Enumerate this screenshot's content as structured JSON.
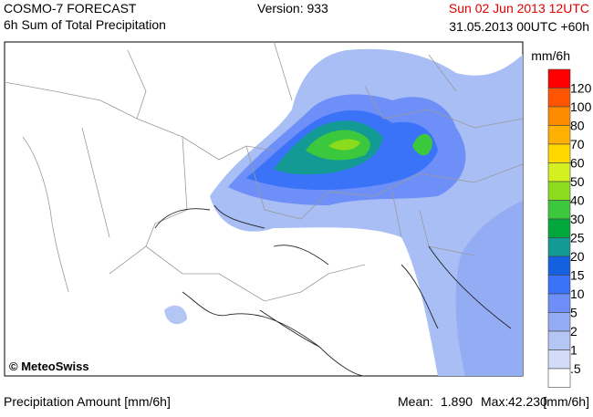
{
  "header": {
    "title": "COSMO-7 FORECAST",
    "subtitle": "6h Sum of Total Precipitation",
    "version": "Version: 933",
    "valid_time": "Sun 02 Jun 2013 12UTC",
    "run_time": "31.05.2013 00UTC +60h"
  },
  "map": {
    "copyright": "© MeteoSwiss"
  },
  "legend": {
    "unit": "mm/6h",
    "colors": [
      "#ff0000",
      "#ff5500",
      "#ff8c00",
      "#ffb000",
      "#ffd800",
      "#d4f020",
      "#8cdc1e",
      "#3cc83c",
      "#00a83c",
      "#139a94",
      "#1560e0",
      "#3a72f8",
      "#6e8ef8",
      "#94acf4",
      "#b4c6f4",
      "#d2dcf8",
      "#ffffff"
    ],
    "labels": [
      "120",
      "100",
      "80",
      "70",
      "60",
      "50",
      "40",
      "30",
      "25",
      "20",
      "15",
      "10",
      "5",
      "2",
      "1",
      ".5"
    ]
  },
  "footer": {
    "left": "Precipitation Amount [mm/6h]",
    "mean_label": "Mean:",
    "mean": "1.890",
    "max_label": "Max:",
    "max": "42.230",
    "unit": "[mm/6h]"
  }
}
